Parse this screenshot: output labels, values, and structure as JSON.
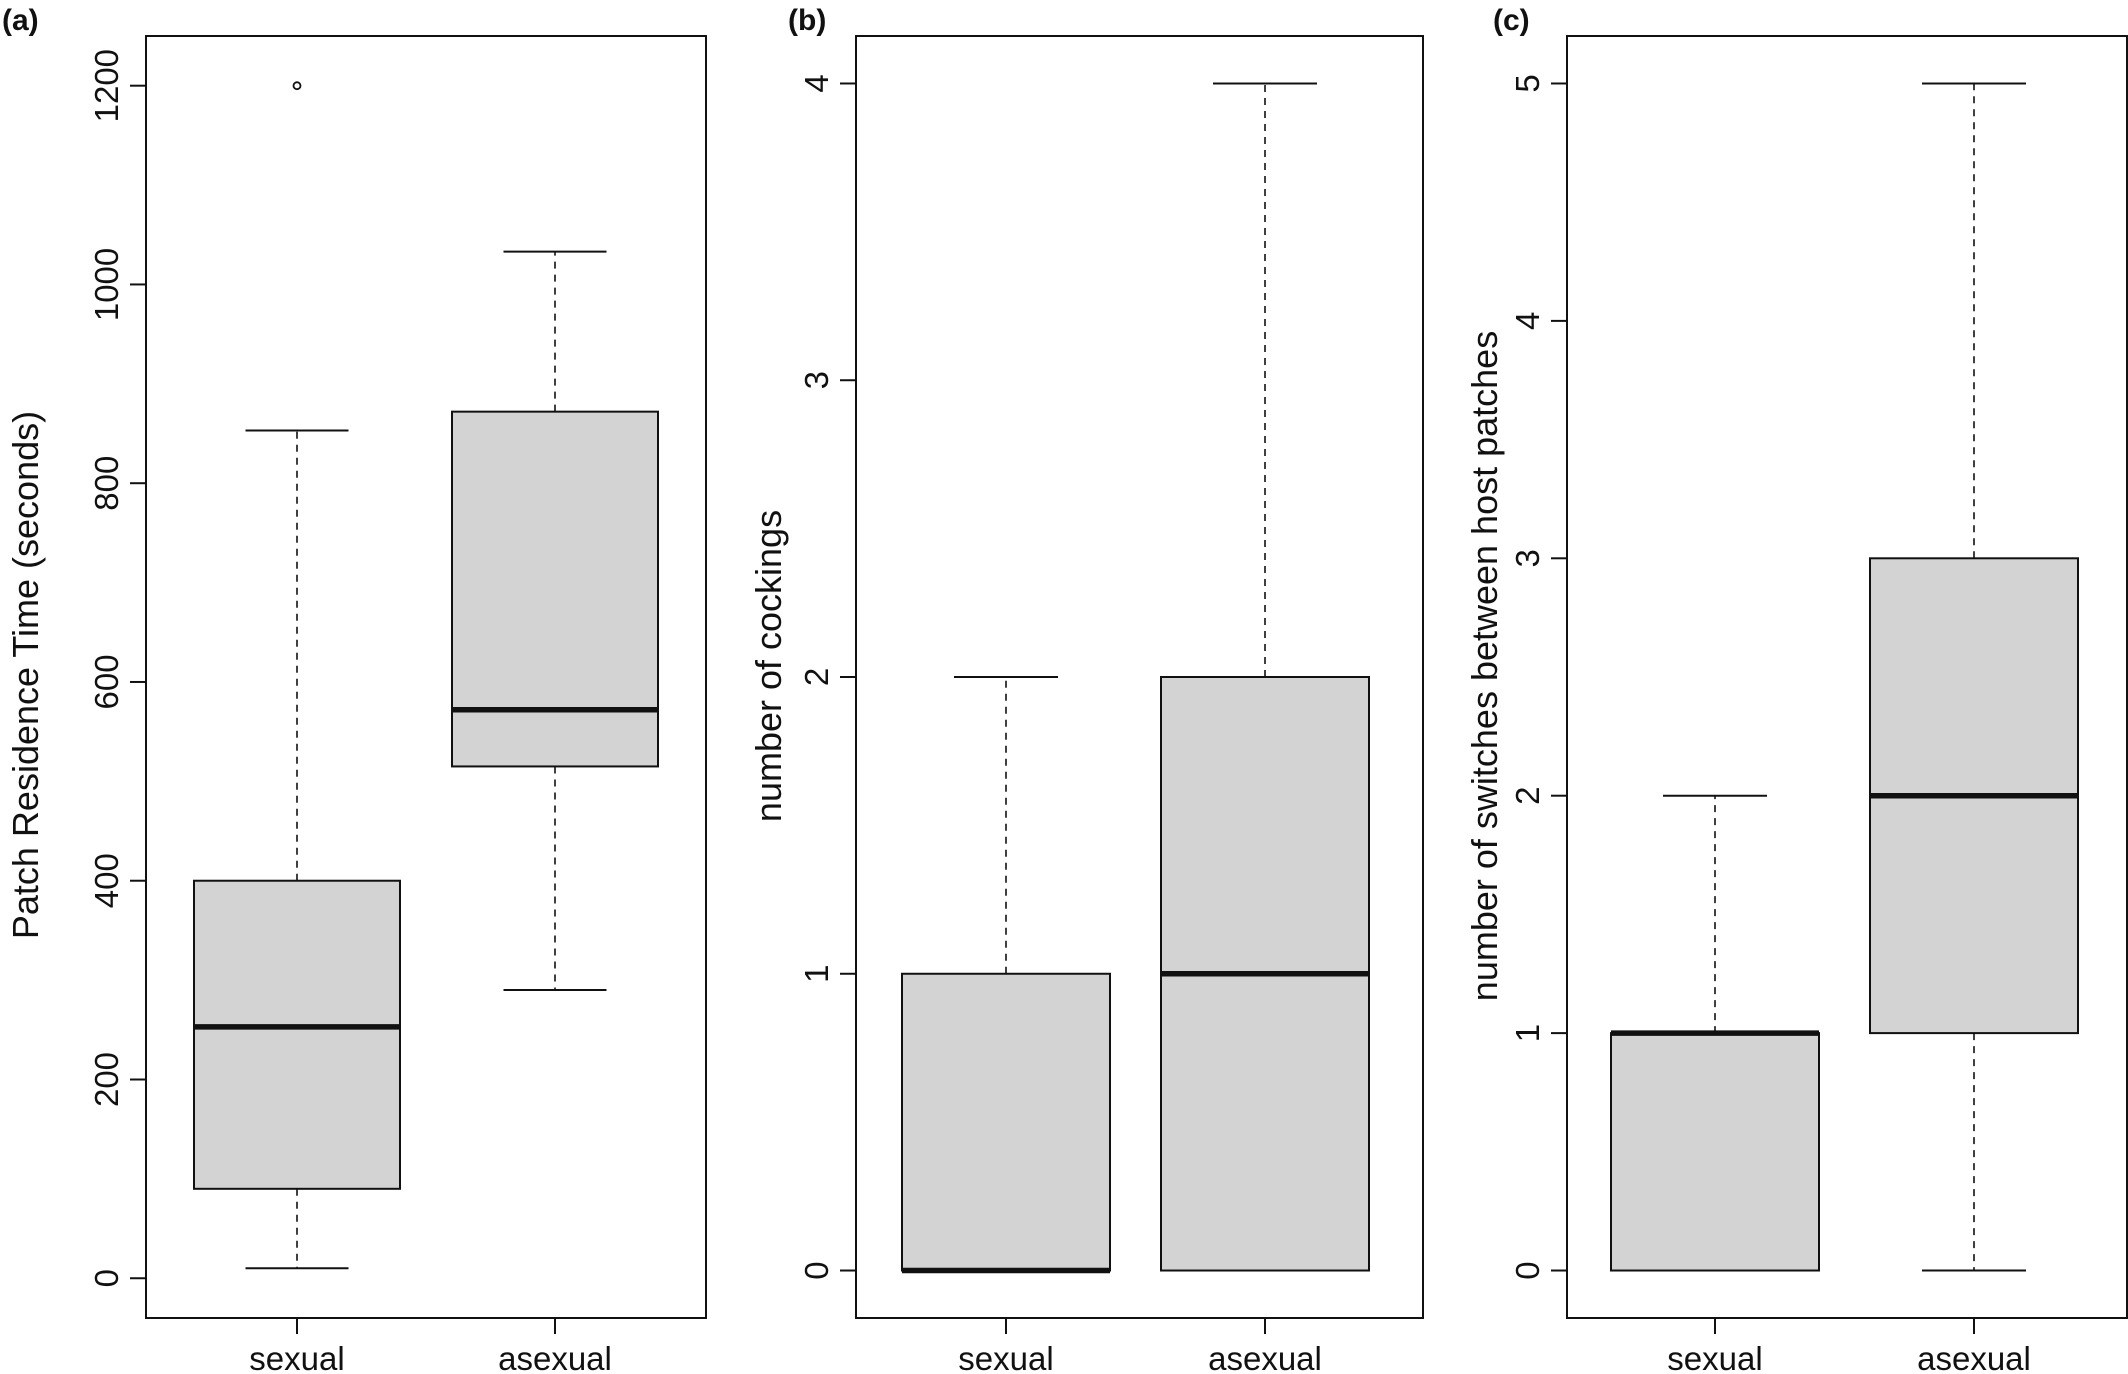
{
  "figure": {
    "panels": [
      {
        "label": "(a)"
      },
      {
        "label": "(b)"
      },
      {
        "label": "(c)"
      }
    ]
  },
  "colors": {
    "box_fill": "#d3d3d3",
    "stroke": "#111111",
    "background": "#ffffff"
  },
  "chart_data": [
    {
      "type": "boxplot",
      "panel": "(a)",
      "title": "",
      "xlabel": "",
      "ylabel": "Patch Residence Time (seconds)",
      "ylim": [
        -40,
        1250
      ],
      "yticks": [
        0,
        200,
        400,
        600,
        800,
        1000,
        1200
      ],
      "grid": false,
      "categories": [
        "sexual",
        "asexual"
      ],
      "boxes": [
        {
          "category": "sexual",
          "whisker_low": 10,
          "q1": 90,
          "median": 253,
          "q3": 400,
          "whisker_high": 853,
          "outliers": [
            1200
          ]
        },
        {
          "category": "asexual",
          "whisker_low": 290,
          "q1": 515,
          "median": 572,
          "q3": 872,
          "whisker_high": 1033,
          "outliers": []
        }
      ]
    },
    {
      "type": "boxplot",
      "panel": "(b)",
      "title": "",
      "xlabel": "",
      "ylabel": "number of cockings",
      "ylim": [
        -0.16,
        4.16
      ],
      "yticks": [
        0,
        1,
        2,
        3,
        4
      ],
      "grid": false,
      "categories": [
        "sexual",
        "asexual"
      ],
      "boxes": [
        {
          "category": "sexual",
          "whisker_low": 0,
          "q1": 0,
          "median": 0,
          "q3": 1,
          "whisker_high": 2,
          "outliers": []
        },
        {
          "category": "asexual",
          "whisker_low": 0,
          "q1": 0,
          "median": 1,
          "q3": 2,
          "whisker_high": 4,
          "outliers": []
        }
      ]
    },
    {
      "type": "boxplot",
      "panel": "(c)",
      "title": "",
      "xlabel": "",
      "ylabel": "number of switches between host patches",
      "ylim": [
        -0.2,
        5.2
      ],
      "yticks": [
        0,
        1,
        2,
        3,
        4,
        5
      ],
      "grid": false,
      "categories": [
        "sexual",
        "asexual"
      ],
      "boxes": [
        {
          "category": "sexual",
          "whisker_low": 0,
          "q1": 0,
          "median": 1,
          "q3": 1,
          "whisker_high": 2,
          "outliers": []
        },
        {
          "category": "asexual",
          "whisker_low": 0,
          "q1": 1,
          "median": 2,
          "q3": 3,
          "whisker_high": 5,
          "outliers": []
        }
      ]
    }
  ]
}
